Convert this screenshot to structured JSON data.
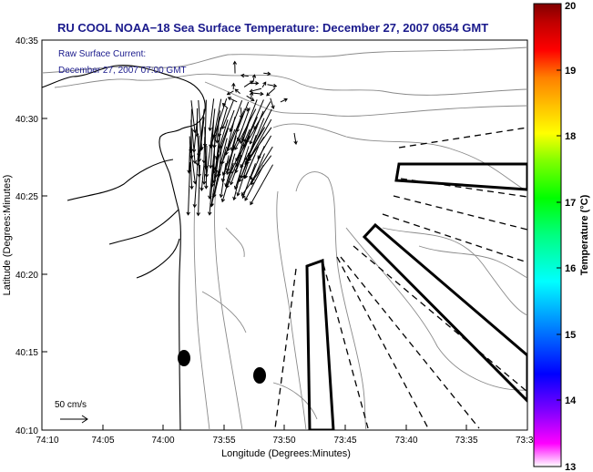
{
  "title": "RU COOL  NOAA−18  Sea Surface Temperature:  December 27, 2007 0654 GMT",
  "current_label": {
    "line1": "Raw Surface Current:",
    "line2": "December 27, 2007 07:00 GMT"
  },
  "scale_label": "50 cm/s",
  "x_axis": {
    "label": "Longitude (Degrees:Minutes)",
    "ticks": [
      "74:10",
      "74:05",
      "74:00",
      "73:55",
      "73:50",
      "73:45",
      "73:40",
      "73:35",
      "73:3"
    ]
  },
  "y_axis": {
    "label": "Latitude (Degrees:Minutes)",
    "ticks": [
      "40:10",
      "40:15",
      "40:20",
      "40:25",
      "40:30",
      "40:35"
    ]
  },
  "colorbar": {
    "label": "Temperature (°C)",
    "ticks": [
      "13",
      "14",
      "15",
      "16",
      "17",
      "18",
      "19",
      "20"
    ],
    "range": [
      13,
      20
    ],
    "colors": [
      "#ffffff",
      "#ff00ff",
      "#8000ff",
      "#0000ff",
      "#0080ff",
      "#00ffff",
      "#00ff80",
      "#00ff00",
      "#80ff00",
      "#ffff00",
      "#ffc000",
      "#ff8000",
      "#ff0000",
      "#c00000",
      "#800000"
    ]
  }
}
